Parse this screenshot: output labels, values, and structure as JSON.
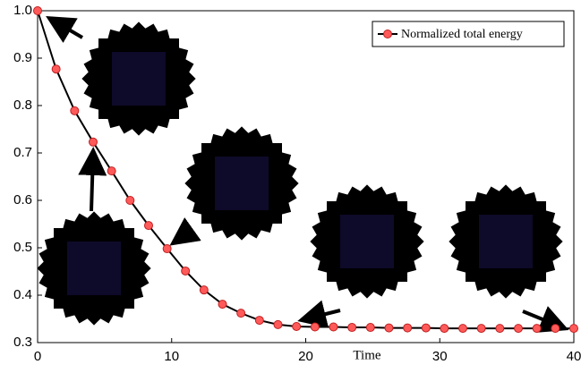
{
  "chart_data": {
    "type": "line",
    "x_label": "Time",
    "x": [
      0,
      1.38,
      2.76,
      4.14,
      5.52,
      6.9,
      8.28,
      9.66,
      11.03,
      12.41,
      13.79,
      15.17,
      16.55,
      17.93,
      19.31,
      20.69,
      22.07,
      23.45,
      24.83,
      26.21,
      27.59,
      28.97,
      30.34,
      31.72,
      33.1,
      34.48,
      35.86,
      37.24,
      38.62,
      40
    ],
    "series": [
      {
        "name": "Normalized total energy",
        "color": "#ff5a5a",
        "values": [
          1.0,
          0.877,
          0.789,
          0.723,
          0.662,
          0.6,
          0.547,
          0.498,
          0.451,
          0.411,
          0.381,
          0.362,
          0.347,
          0.338,
          0.334,
          0.333,
          0.333,
          0.332,
          0.332,
          0.331,
          0.331,
          0.331,
          0.33,
          0.33,
          0.33,
          0.33,
          0.33,
          0.33,
          0.33,
          0.33
        ]
      }
    ],
    "xlim": [
      0,
      40
    ],
    "xticks": [
      0,
      10,
      20,
      30,
      40
    ],
    "ylim": [
      0.3,
      1
    ],
    "yticks": [
      0.3,
      0.4,
      0.5,
      0.6,
      0.7,
      0.8,
      0.9,
      {
        "value": 1,
        "label": "1.0"
      }
    ],
    "legend": "upper right"
  }
}
